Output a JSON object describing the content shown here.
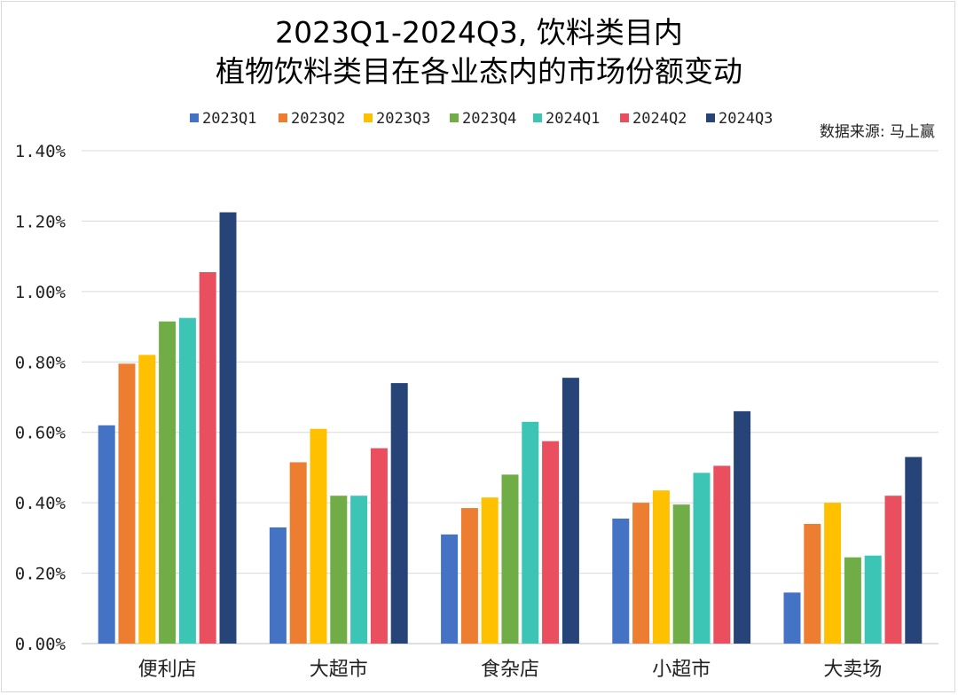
{
  "chart_data": {
    "type": "bar",
    "title_lines": [
      "2023Q1-2024Q3, 饮料类目内",
      "植物饮料类目在各业态内的市场份额变动"
    ],
    "source_note": "数据来源: 马上赢",
    "categories": [
      "便利店",
      "大超市",
      "食杂店",
      "小超市",
      "大卖场"
    ],
    "series": [
      {
        "name": "2023Q1",
        "color": "#4472c4",
        "values": [
          0.62,
          0.33,
          0.31,
          0.355,
          0.145
        ]
      },
      {
        "name": "2023Q2",
        "color": "#ed7d31",
        "values": [
          0.795,
          0.515,
          0.385,
          0.4,
          0.34
        ]
      },
      {
        "name": "2023Q3",
        "color": "#ffc000",
        "values": [
          0.82,
          0.61,
          0.415,
          0.435,
          0.4
        ]
      },
      {
        "name": "2023Q4",
        "color": "#70ad47",
        "values": [
          0.915,
          0.42,
          0.48,
          0.395,
          0.245
        ]
      },
      {
        "name": "2024Q1",
        "color": "#3cc5b4",
        "values": [
          0.925,
          0.42,
          0.63,
          0.485,
          0.25
        ]
      },
      {
        "name": "2024Q2",
        "color": "#e94f5f",
        "values": [
          1.055,
          0.555,
          0.575,
          0.505,
          0.42
        ]
      },
      {
        "name": "2024Q3",
        "color": "#264478",
        "values": [
          1.225,
          0.74,
          0.755,
          0.66,
          0.53
        ]
      }
    ],
    "y_ticks": [
      "0.00%",
      "0.20%",
      "0.40%",
      "0.60%",
      "0.80%",
      "1.00%",
      "1.20%",
      "1.40%"
    ],
    "ylim": [
      0,
      1.4
    ],
    "xlabel": "",
    "ylabel": "",
    "grid": true,
    "legend_position": "top"
  }
}
